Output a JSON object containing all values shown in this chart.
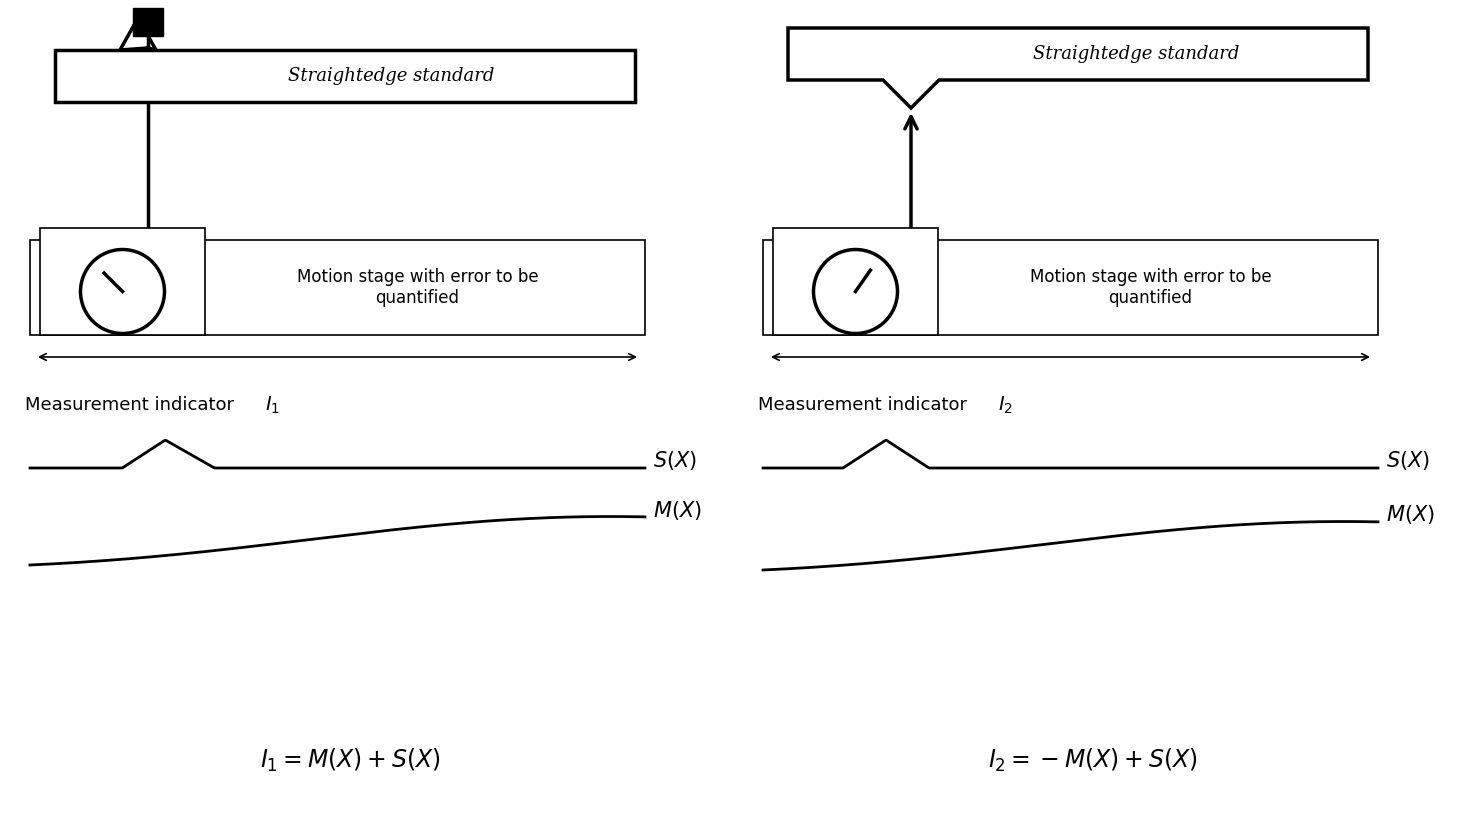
{
  "bg_color": "#ffffff",
  "line_color": "#000000",
  "left_panel": {
    "straightedge_label": "Straightedge standard",
    "motion_stage_label": "Motion stage with error to be\nquantified",
    "indicator_label": "Measurement indicator",
    "indicator_sub": "$I_1$",
    "sx_label": "$S(X)$",
    "mx_label": "$M(X)$",
    "formula_label": "$I_1=M(X)+S(X)$"
  },
  "right_panel": {
    "straightedge_label": "Straightedge standard",
    "motion_stage_label": "Motion stage with error to be\nquantified",
    "indicator_label": "Measurement indicator",
    "indicator_sub": "$I_2$",
    "sx_label": "$S(X)$",
    "mx_label": "$M(X)$",
    "formula_label": "$I_2=-M(X)+S(X)$"
  },
  "lw_thick": 2.5,
  "lw_thin": 1.2,
  "lw_curve": 2.0
}
